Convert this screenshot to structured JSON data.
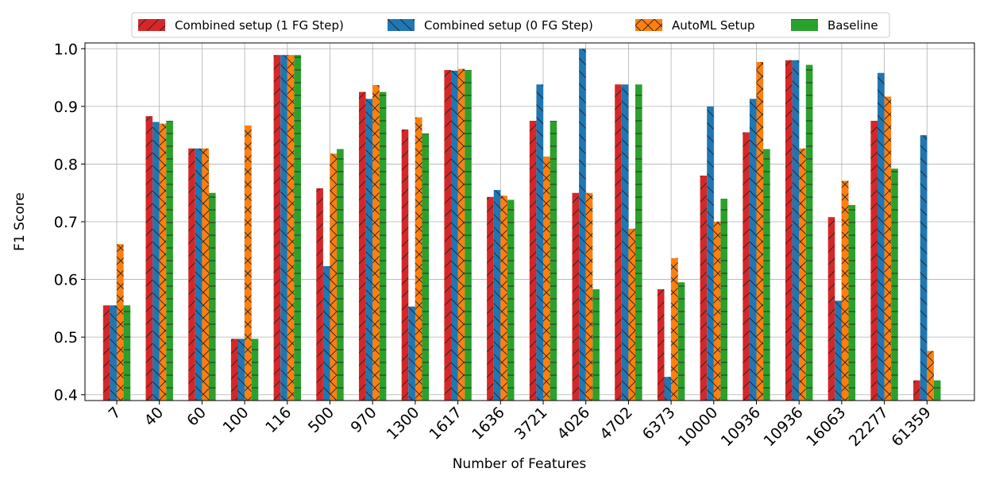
{
  "chart_data": {
    "type": "bar",
    "xlabel": "Number of Features",
    "ylabel": "F1 Score",
    "ylim": [
      0.39,
      1.01
    ],
    "yticks": [
      "0.4",
      "0.5",
      "0.6",
      "0.7",
      "0.8",
      "0.9",
      "1.0"
    ],
    "grid": true,
    "legend_position": "top-center",
    "categories": [
      "7",
      "40",
      "60",
      "100",
      "116",
      "500",
      "970",
      "1300",
      "1617",
      "1636",
      "3721",
      "4026",
      "4702",
      "6373",
      "10000",
      "10936",
      "10936",
      "16063",
      "22277",
      "61359"
    ],
    "series": [
      {
        "name": "Combined setup (1 FG Step)",
        "color": "#d62728",
        "hatch": "forward-diagonal",
        "values": [
          0.555,
          0.883,
          0.827,
          0.497,
          0.989,
          0.758,
          0.925,
          0.86,
          0.963,
          0.743,
          0.875,
          0.75,
          0.938,
          0.583,
          0.78,
          0.855,
          0.98,
          0.708,
          0.875,
          0.425
        ]
      },
      {
        "name": "Combined setup (0 FG Step)",
        "color": "#1f77b4",
        "hatch": "back-diagonal",
        "values": [
          0.555,
          0.873,
          0.827,
          0.497,
          0.989,
          0.623,
          0.913,
          0.553,
          0.962,
          0.755,
          0.938,
          1.0,
          0.938,
          0.431,
          0.9,
          0.913,
          0.98,
          0.563,
          0.958,
          0.85
        ]
      },
      {
        "name": "AutoML Setup",
        "color": "#ff7f0e",
        "hatch": "cross",
        "values": [
          0.661,
          0.87,
          0.827,
          0.867,
          0.989,
          0.818,
          0.937,
          0.881,
          0.965,
          0.745,
          0.813,
          0.75,
          0.688,
          0.637,
          0.7,
          0.977,
          0.827,
          0.771,
          0.917,
          0.476
        ]
      },
      {
        "name": "Baseline",
        "color": "#2ca02c",
        "hatch": "horizontal",
        "values": [
          0.555,
          0.875,
          0.75,
          0.497,
          0.989,
          0.826,
          0.925,
          0.853,
          0.963,
          0.738,
          0.875,
          0.583,
          0.938,
          0.595,
          0.74,
          0.826,
          0.972,
          0.729,
          0.792,
          0.425
        ]
      }
    ]
  }
}
